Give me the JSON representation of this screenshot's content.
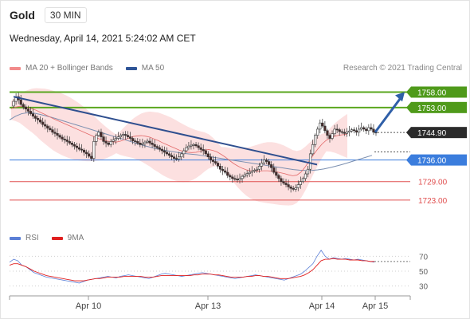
{
  "header": {
    "title": "Gold",
    "interval": "30 MIN"
  },
  "datetime": "Wednesday, April 14, 2021 5:24:02 AM CET",
  "legend": {
    "ma20": {
      "label": "MA 20 + Bollinger Bands",
      "color": "#f28b8b"
    },
    "ma50": {
      "label": "MA 50",
      "color": "#2f5597"
    }
  },
  "source": "Research © 2021 Trading Central",
  "rsi_legend": {
    "rsi": {
      "label": "RSI",
      "color": "#5b7fd6"
    },
    "ma9": {
      "label": "9MA",
      "color": "#e02020"
    }
  },
  "chart_data": [
    {
      "type": "candlestick",
      "ylim": [
        1716,
        1762
      ],
      "x_ticks": [
        "Apr 10",
        "Apr 13",
        "Apr 14",
        "Apr 15"
      ],
      "levels": [
        {
          "value": 1758.0,
          "label": "1758.00",
          "color": "#5aa61e",
          "kind": "resistance"
        },
        {
          "value": 1753.0,
          "label": "1753.00",
          "color": "#5aa61e",
          "kind": "resistance"
        },
        {
          "value": 1744.9,
          "label": "1744.90",
          "color": "#333333",
          "kind": "last-price"
        },
        {
          "value": 1736.0,
          "label": "1736.00",
          "color": "#3b7ddd",
          "kind": "pivot"
        },
        {
          "value": 1729.0,
          "label": "1729.00",
          "color": "#e05050",
          "kind": "support"
        },
        {
          "value": 1723.0,
          "label": "1723.00",
          "color": "#e05050",
          "kind": "support"
        }
      ],
      "close_series": [
        1753.5,
        1755,
        1756.5,
        1755.5,
        1754,
        1753.2,
        1752.5,
        1751.8,
        1751,
        1750.2,
        1749.5,
        1749,
        1748.3,
        1747.5,
        1747,
        1746.3,
        1745.8,
        1745,
        1744.6,
        1744,
        1743.4,
        1742.8,
        1742.5,
        1742,
        1741.5,
        1741,
        1740.5,
        1740,
        1739.5,
        1739.2,
        1738.5,
        1738,
        1737.2,
        1736.5,
        1742,
        1744,
        1745,
        1743.5,
        1742,
        1741.5,
        1741,
        1742,
        1742.5,
        1743,
        1743.5,
        1744,
        1744.3,
        1744,
        1743.5,
        1743,
        1742.2,
        1742,
        1741.5,
        1741,
        1741.3,
        1741.8,
        1742.1,
        1741.5,
        1741,
        1740.4,
        1740,
        1739.5,
        1739,
        1738.5,
        1738,
        1737.5,
        1737,
        1736.5,
        1736.3,
        1737,
        1738,
        1739,
        1740,
        1740.5,
        1740.8,
        1741,
        1740.6,
        1740,
        1739.4,
        1739,
        1738,
        1737,
        1736,
        1735.5,
        1735,
        1734,
        1733,
        1732.5,
        1732,
        1731,
        1730.5,
        1730,
        1729.8,
        1729.5,
        1730,
        1730.7,
        1731.2,
        1731.6,
        1732,
        1732.4,
        1732.7,
        1733,
        1734,
        1735,
        1736,
        1735.5,
        1734.5,
        1733.5,
        1732,
        1731,
        1730,
        1729,
        1728.5,
        1728,
        1727.3,
        1726.8,
        1726.5,
        1727,
        1728,
        1729,
        1730,
        1731.5,
        1733,
        1738,
        1741,
        1744,
        1746,
        1748,
        1747,
        1745.5,
        1744,
        1743,
        1744.5,
        1746,
        1745.8,
        1745.2,
        1745,
        1744.6,
        1745,
        1745.4,
        1745.8,
        1745.5,
        1745,
        1746,
        1746.5,
        1746,
        1745.5,
        1746.5,
        1746,
        1745,
        1744.9
      ],
      "ma20": [
        1752,
        1752.5,
        1752.8,
        1752.6,
        1752.3,
        1752,
        1751.5,
        1750.8,
        1750.2,
        1749.5,
        1748.8,
        1748.2,
        1747.6,
        1747,
        1746.4,
        1745.8,
        1745.2,
        1744.6,
        1744,
        1743.4,
        1742.8,
        1742.2,
        1741.8,
        1741.5,
        1741.3,
        1741.2,
        1741.5,
        1742,
        1742.5,
        1743,
        1743.2,
        1743.3,
        1743.1,
        1742.8,
        1742.2,
        1741.7,
        1741,
        1740.4,
        1739.8,
        1739.2,
        1738.6,
        1738.2,
        1737.9,
        1737.8,
        1737.9,
        1738.2,
        1738.6,
        1738.8,
        1738.5,
        1738,
        1737.2,
        1736.3,
        1735.2,
        1734.2,
        1733.4,
        1732.7,
        1732.2,
        1731.9,
        1731.8,
        1731.8,
        1731.9,
        1731.9,
        1731.8,
        1731.6,
        1731.3,
        1731,
        1730.6,
        1730.3,
        1730.5,
        1731.5,
        1733.2,
        1735.2,
        1737.2,
        1739,
        1740.6,
        1741.8,
        1742.6,
        1743.1,
        1743.4,
        1743.6,
        1743.8
      ],
      "ma50": [
        1749,
        1750.2,
        1751,
        1751.3,
        1751.2,
        1750.8,
        1750.3,
        1749.8,
        1749.2,
        1748.6,
        1748,
        1747.4,
        1746.8,
        1746.2,
        1745.6,
        1745,
        1744.4,
        1743.8,
        1743.2,
        1742.6,
        1742,
        1741.4,
        1740.8,
        1740.3,
        1739.8,
        1739.4,
        1739,
        1738.7,
        1738.4,
        1738.1,
        1737.9,
        1737.7,
        1737.4,
        1737.1,
        1736.8,
        1736.5,
        1736.2,
        1735.9,
        1735.6,
        1735.3,
        1735,
        1734.7,
        1734.4,
        1734.1,
        1733.8,
        1733.5,
        1733.2,
        1732.9,
        1732.7,
        1732.6,
        1732.6,
        1732.8,
        1733.1,
        1733.5,
        1734,
        1734.5,
        1735.1,
        1735.7,
        1736.3,
        1736.9,
        1737.5
      ]
    },
    {
      "type": "line",
      "ylim": [
        20,
        80
      ],
      "y_ticks": [
        30,
        50,
        70
      ],
      "series": [
        {
          "name": "RSI",
          "values": [
            62,
            66,
            64,
            58,
            56,
            52,
            48,
            46,
            44,
            42,
            41,
            40,
            39,
            38,
            37,
            36,
            35,
            34,
            36,
            38,
            39,
            40,
            41,
            42,
            43,
            42,
            41,
            43,
            44,
            45,
            44,
            43,
            42,
            41,
            40,
            42,
            44,
            46,
            47,
            46,
            45,
            44,
            43,
            44,
            45,
            46,
            47,
            48,
            47,
            46,
            45,
            44,
            43,
            42,
            41,
            40,
            41,
            42,
            43,
            44,
            45,
            44,
            43,
            42,
            41,
            40,
            39,
            38,
            40,
            42,
            44,
            46,
            50,
            55,
            60,
            70,
            78,
            70,
            66,
            68,
            67,
            66,
            67,
            66,
            65,
            66,
            65,
            64,
            63,
            62
          ]
        },
        {
          "name": "9MA",
          "values": [
            58,
            60,
            60,
            58,
            56,
            53,
            50,
            48,
            46,
            44,
            43,
            42,
            41,
            40,
            39,
            38,
            37,
            37,
            37,
            38,
            39,
            40,
            40,
            41,
            42,
            42,
            42,
            42,
            43,
            43,
            43,
            43,
            43,
            42,
            42,
            42,
            43,
            44,
            44,
            44,
            44,
            44,
            44,
            44,
            44,
            45,
            45,
            46,
            46,
            46,
            45,
            45,
            44,
            43,
            42,
            42,
            42,
            42,
            43,
            43,
            44,
            44,
            43,
            43,
            42,
            41,
            40,
            40,
            40,
            41,
            42,
            43,
            45,
            48,
            52,
            58,
            64,
            66,
            66,
            67,
            66,
            66,
            66,
            65,
            65,
            65,
            64,
            64,
            63,
            63
          ]
        }
      ]
    }
  ]
}
